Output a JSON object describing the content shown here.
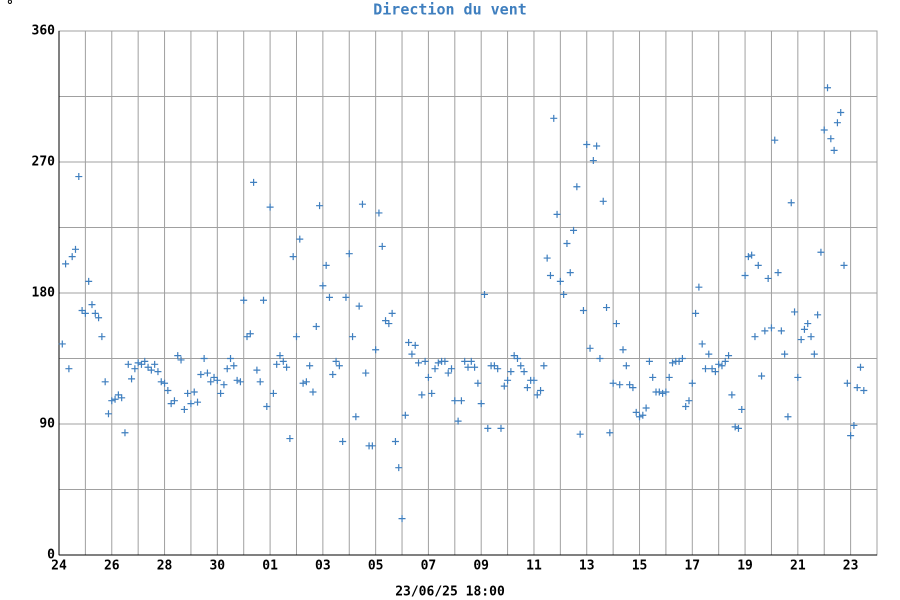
{
  "chart_data": {
    "type": "scatter",
    "title": "Direction du vent",
    "y_label": "°",
    "x_label": "23/06/25 18:00",
    "color": "#3f7fbf",
    "grid": true,
    "minor_grid": true,
    "xlim": [
      0,
      31
    ],
    "ylim": [
      0,
      360
    ],
    "yticks": [
      0,
      90,
      180,
      270,
      360
    ],
    "xticks": [
      {
        "value": 0,
        "label": "24"
      },
      {
        "value": 2,
        "label": "26"
      },
      {
        "value": 4,
        "label": "28"
      },
      {
        "value": 6,
        "label": "30"
      },
      {
        "value": 8,
        "label": "01"
      },
      {
        "value": 10,
        "label": "03"
      },
      {
        "value": 12,
        "label": "05"
      },
      {
        "value": 14,
        "label": "07"
      },
      {
        "value": 16,
        "label": "09"
      },
      {
        "value": 18,
        "label": "11"
      },
      {
        "value": 20,
        "label": "13"
      },
      {
        "value": 22,
        "label": "15"
      },
      {
        "value": 24,
        "label": "17"
      },
      {
        "value": 26,
        "label": "19"
      },
      {
        "value": 28,
        "label": "21"
      },
      {
        "value": 30,
        "label": "23"
      }
    ],
    "x": [
      0.125,
      0.25,
      0.375,
      0.5,
      0.625,
      0.75,
      0.875,
      1,
      1.125,
      1.25,
      1.375,
      1.5,
      1.625,
      1.75,
      1.875,
      2,
      2.125,
      2.25,
      2.375,
      2.5,
      2.625,
      2.75,
      2.875,
      3,
      3.125,
      3.25,
      3.375,
      3.5,
      3.625,
      3.75,
      3.875,
      4,
      4.125,
      4.25,
      4.375,
      4.5,
      4.625,
      4.75,
      4.875,
      5,
      5.125,
      5.25,
      5.375,
      5.5,
      5.625,
      5.75,
      5.875,
      6,
      6.125,
      6.25,
      6.375,
      6.5,
      6.625,
      6.75,
      6.875,
      7,
      7.125,
      7.25,
      7.375,
      7.5,
      7.625,
      7.75,
      7.875,
      8,
      8.125,
      8.25,
      8.375,
      8.5,
      8.625,
      8.75,
      8.875,
      9,
      9.125,
      9.25,
      9.375,
      9.5,
      9.625,
      9.75,
      9.875,
      10,
      10.125,
      10.25,
      10.375,
      10.5,
      10.625,
      10.75,
      10.875,
      11,
      11.125,
      11.25,
      11.375,
      11.5,
      11.625,
      11.75,
      11.875,
      12,
      12.125,
      12.25,
      12.375,
      12.5,
      12.625,
      12.75,
      12.875,
      13,
      13.125,
      13.25,
      13.375,
      13.5,
      13.625,
      13.75,
      13.875,
      14,
      14.125,
      14.25,
      14.375,
      14.5,
      14.625,
      14.75,
      14.875,
      15,
      15.125,
      15.25,
      15.375,
      15.5,
      15.625,
      15.75,
      15.875,
      16,
      16.125,
      16.25,
      16.375,
      16.5,
      16.625,
      16.75,
      16.875,
      17,
      17.125,
      17.25,
      17.375,
      17.5,
      17.625,
      17.75,
      17.875,
      18,
      18.125,
      18.25,
      18.375,
      18.5,
      18.625,
      18.75,
      18.875,
      19,
      19.125,
      19.25,
      19.375,
      19.5,
      19.625,
      19.75,
      19.875,
      20,
      20.125,
      20.25,
      20.375,
      20.5,
      20.625,
      20.75,
      20.875,
      21,
      21.125,
      21.25,
      21.375,
      21.5,
      21.625,
      21.75,
      21.875,
      22,
      22.125,
      22.25,
      22.375,
      22.5,
      22.625,
      22.75,
      22.875,
      23,
      23.125,
      23.25,
      23.375,
      23.5,
      23.625,
      23.75,
      23.875,
      24,
      24.125,
      24.25,
      24.375,
      24.5,
      24.625,
      24.75,
      24.875,
      25,
      25.125,
      25.25,
      25.375,
      25.5,
      25.625,
      25.75,
      25.875,
      26,
      26.125,
      26.25,
      26.375,
      26.5,
      26.625,
      26.75,
      26.875,
      27,
      27.125,
      27.25,
      27.375,
      27.5,
      27.625,
      27.75,
      27.875,
      28,
      28.125,
      28.25,
      28.375,
      28.5,
      28.625,
      28.75,
      28.875,
      29,
      29.125,
      29.25,
      29.375,
      29.5,
      29.625,
      29.75,
      29.875,
      30,
      30.125,
      30.25,
      30.375,
      30.5
    ],
    "values": [
      145,
      200,
      128,
      205,
      210,
      260,
      168,
      166,
      188,
      172,
      166,
      163,
      150,
      119,
      97,
      106,
      107,
      110,
      108,
      84,
      131,
      121,
      128,
      132,
      131,
      133,
      129,
      127,
      131,
      126,
      119,
      118,
      113,
      104,
      106,
      137,
      134,
      100,
      111,
      104,
      112,
      105,
      124,
      135,
      125,
      119,
      122,
      120,
      111,
      117,
      128,
      135,
      130,
      120,
      119,
      175,
      150,
      152,
      256,
      127,
      119,
      175,
      102,
      239,
      111,
      131,
      137,
      133,
      129,
      80,
      205,
      150,
      217,
      118,
      119,
      130,
      112,
      157,
      240,
      185,
      199,
      177,
      124,
      133,
      130,
      78,
      177,
      207,
      150,
      95,
      171,
      241,
      125,
      75,
      75,
      141,
      235,
      212,
      161,
      159,
      166,
      78,
      60,
      25,
      96,
      146,
      138,
      144,
      132,
      110,
      133,
      122,
      111,
      128,
      132,
      133,
      133,
      125,
      128,
      106,
      92,
      106,
      133,
      129,
      133,
      129,
      118,
      104,
      179,
      87,
      130,
      130,
      128,
      87,
      116,
      120,
      126,
      137,
      135,
      130,
      126,
      115,
      120,
      120,
      110,
      113,
      130,
      204,
      192,
      300,
      234,
      188,
      179,
      214,
      194,
      223,
      253,
      83,
      168,
      282,
      142,
      271,
      281,
      135,
      243,
      170,
      84,
      118,
      159,
      117,
      141,
      130,
      117,
      115,
      98,
      95,
      96,
      101,
      133,
      122,
      112,
      112,
      111,
      112,
      122,
      132,
      133,
      133,
      135,
      102,
      106,
      118,
      166,
      184,
      145,
      128,
      138,
      128,
      126,
      131,
      130,
      133,
      137,
      110,
      88,
      87,
      100,
      192,
      205,
      206,
      150,
      199,
      123,
      154,
      190,
      156,
      285,
      194,
      154,
      138,
      95,
      242,
      167,
      122,
      148,
      155,
      159,
      150,
      138,
      165,
      208,
      292,
      321,
      286,
      278,
      297,
      304,
      199,
      118,
      82,
      89,
      115,
      129,
      113
    ]
  }
}
